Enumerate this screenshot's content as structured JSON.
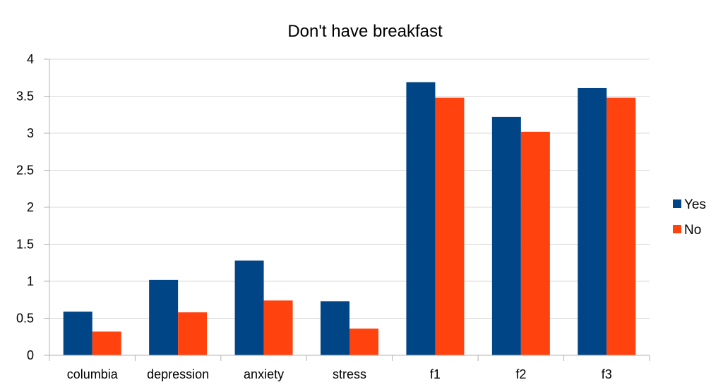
{
  "chart_data": {
    "type": "bar",
    "title": "Don't have breakfast",
    "xlabel": "",
    "ylabel": "",
    "categories": [
      "columbia",
      "depression",
      "anxiety",
      "stress",
      "f1",
      "f2",
      "f3"
    ],
    "series": [
      {
        "name": "Yes",
        "color": "#004586",
        "values": [
          0.59,
          1.02,
          1.28,
          0.73,
          3.69,
          3.22,
          3.61
        ]
      },
      {
        "name": "No",
        "color": "#ff420e",
        "values": [
          0.32,
          0.58,
          0.74,
          0.36,
          3.48,
          3.02,
          3.48
        ]
      }
    ],
    "ylim": [
      0,
      4
    ],
    "yticks": [
      "0",
      "0.5",
      "1",
      "1.5",
      "2",
      "2.5",
      "3",
      "3.5",
      "4"
    ],
    "grid": true,
    "legend_position": "right"
  }
}
